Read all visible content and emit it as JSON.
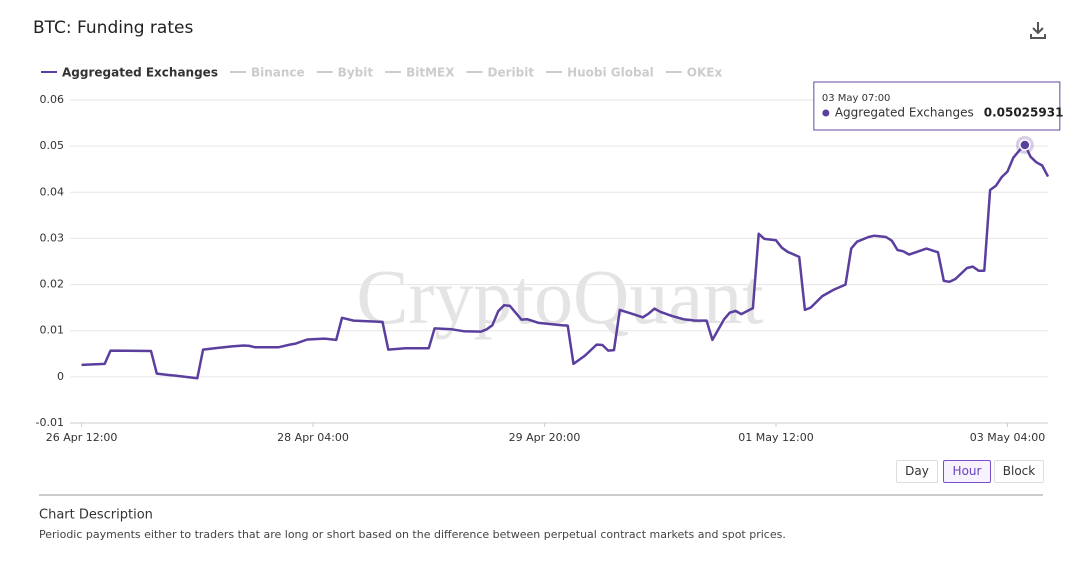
{
  "header": {
    "title": "BTC: Funding rates"
  },
  "chart_data": {
    "type": "line",
    "x": [
      "26 Apr 12:00",
      "26 Apr 16:00",
      "26 Apr 17:00",
      "27 Apr 00:00",
      "27 Apr 01:00",
      "27 Apr 03:00",
      "27 Apr 04:00",
      "27 Apr 06:00",
      "27 Apr 08:00",
      "27 Apr 09:00",
      "27 Apr 11:00",
      "27 Apr 14:00",
      "27 Apr 16:00",
      "27 Apr 17:00",
      "27 Apr 18:00",
      "27 Apr 22:00",
      "28 Apr 00:00",
      "28 Apr 01:00",
      "28 Apr 03:00",
      "28 Apr 06:00",
      "28 Apr 08:00",
      "28 Apr 09:00",
      "28 Apr 11:00",
      "28 Apr 16:00",
      "28 Apr 17:00",
      "28 Apr 20:00",
      "29 Apr 00:00",
      "29 Apr 01:00",
      "29 Apr 04:00",
      "29 Apr 06:00",
      "29 Apr 09:00",
      "29 Apr 10:00",
      "29 Apr 11:00",
      "29 Apr 12:00",
      "29 Apr 13:00",
      "29 Apr 14:00",
      "29 Apr 15:00",
      "29 Apr 16:00",
      "29 Apr 17:00",
      "29 Apr 19:00",
      "29 Apr 23:00",
      "30 Apr 00:00",
      "30 Apr 01:00",
      "30 Apr 03:00",
      "30 Apr 05:00",
      "30 Apr 06:00",
      "30 Apr 07:00",
      "30 Apr 08:00",
      "30 Apr 09:00",
      "30 Apr 11:00",
      "30 Apr 13:00",
      "30 Apr 14:00",
      "30 Apr 15:00",
      "30 Apr 16:00",
      "30 Apr 18:00",
      "30 Apr 20:00",
      "30 Apr 22:00",
      "01 May 00:00",
      "01 May 01:00",
      "01 May 03:00",
      "01 May 04:00",
      "01 May 05:00",
      "01 May 06:00",
      "01 May 08:00",
      "01 May 09:00",
      "01 May 10:00",
      "01 May 12:00",
      "01 May 13:00",
      "01 May 14:00",
      "01 May 16:00",
      "01 May 17:00",
      "01 May 18:00",
      "01 May 20:00",
      "01 May 22:00",
      "02 May 00:00",
      "02 May 01:00",
      "02 May 02:00",
      "02 May 04:00",
      "02 May 05:00",
      "02 May 07:00",
      "02 May 08:00",
      "02 May 09:00",
      "02 May 10:00",
      "02 May 11:00",
      "02 May 14:00",
      "02 May 16:00",
      "02 May 17:00",
      "02 May 18:00",
      "02 May 19:00",
      "02 May 21:00",
      "02 May 22:00",
      "02 May 23:00",
      "03 May 00:00",
      "03 May 01:00",
      "03 May 02:00",
      "03 May 03:00",
      "03 May 04:00",
      "03 May 05:00",
      "03 May 06:00",
      "03 May 07:00",
      "03 May 08:00",
      "03 May 09:00",
      "03 May 10:00",
      "03 May 11:00"
    ],
    "series": [
      {
        "name": "Aggregated Exchanges",
        "color": "#5b3f9e",
        "visible": true,
        "values": [
          0.0026,
          0.0028,
          0.0057,
          0.0056,
          0.0007,
          0.0004,
          0.0003,
          0.0,
          -0.0003,
          0.0059,
          0.0062,
          0.0066,
          0.0068,
          0.0067,
          0.0064,
          0.0064,
          0.007,
          0.0072,
          0.0081,
          0.0083,
          0.008,
          0.0128,
          0.0122,
          0.0119,
          0.0059,
          0.0062,
          0.0062,
          0.0105,
          0.0103,
          0.0099,
          0.0098,
          0.0103,
          0.0112,
          0.0142,
          0.0155,
          0.0154,
          0.0139,
          0.0124,
          0.0125,
          0.0117,
          0.0112,
          0.0111,
          0.0028,
          0.0046,
          0.007,
          0.0069,
          0.0057,
          0.0058,
          0.0145,
          0.0137,
          0.0129,
          0.0137,
          0.0148,
          0.0141,
          0.0132,
          0.0125,
          0.0122,
          0.0122,
          0.008,
          0.0124,
          0.0139,
          0.0143,
          0.0136,
          0.0149,
          0.031,
          0.0299,
          0.0296,
          0.028,
          0.0271,
          0.026,
          0.0145,
          0.015,
          0.0175,
          0.0189,
          0.02,
          0.0278,
          0.0293,
          0.0303,
          0.0306,
          0.0303,
          0.0295,
          0.0275,
          0.0272,
          0.0265,
          0.0278,
          0.027,
          0.0208,
          0.0206,
          0.0212,
          0.0236,
          0.0239,
          0.023,
          0.023,
          0.0405,
          0.0414,
          0.0433,
          0.0445,
          0.0475,
          0.049,
          0.05025931,
          0.0477,
          0.0465,
          0.0458,
          0.0434
        ]
      },
      {
        "name": "Binance",
        "color": "#cccccc",
        "visible": false
      },
      {
        "name": "Bybit",
        "color": "#cccccc",
        "visible": false
      },
      {
        "name": "BitMEX",
        "color": "#cccccc",
        "visible": false
      },
      {
        "name": "Deribit",
        "color": "#cccccc",
        "visible": false
      },
      {
        "name": "Huobi Global",
        "color": "#cccccc",
        "visible": false
      },
      {
        "name": "OKEx",
        "color": "#cccccc",
        "visible": false
      }
    ],
    "xlim": [
      "26 Apr 10:00",
      "03 May 11:00"
    ],
    "xticks": [
      "26 Apr 12:00",
      "28 Apr 04:00",
      "29 Apr 20:00",
      "01 May 12:00",
      "03 May 04:00"
    ],
    "ylim": [
      -0.01,
      0.06
    ],
    "yticks": [
      0.06,
      0.05,
      0.04,
      0.03,
      0.02,
      0.01,
      0,
      -0.01
    ],
    "grid": true,
    "watermark": "CryptoQuant"
  },
  "controls": {
    "buttons": [
      "Day",
      "Hour",
      "Block"
    ],
    "active": "Hour"
  },
  "description": {
    "heading": "Chart Description",
    "text": "Periodic payments either to traders that are long or short based on the difference between perpetual contract markets and spot prices."
  }
}
